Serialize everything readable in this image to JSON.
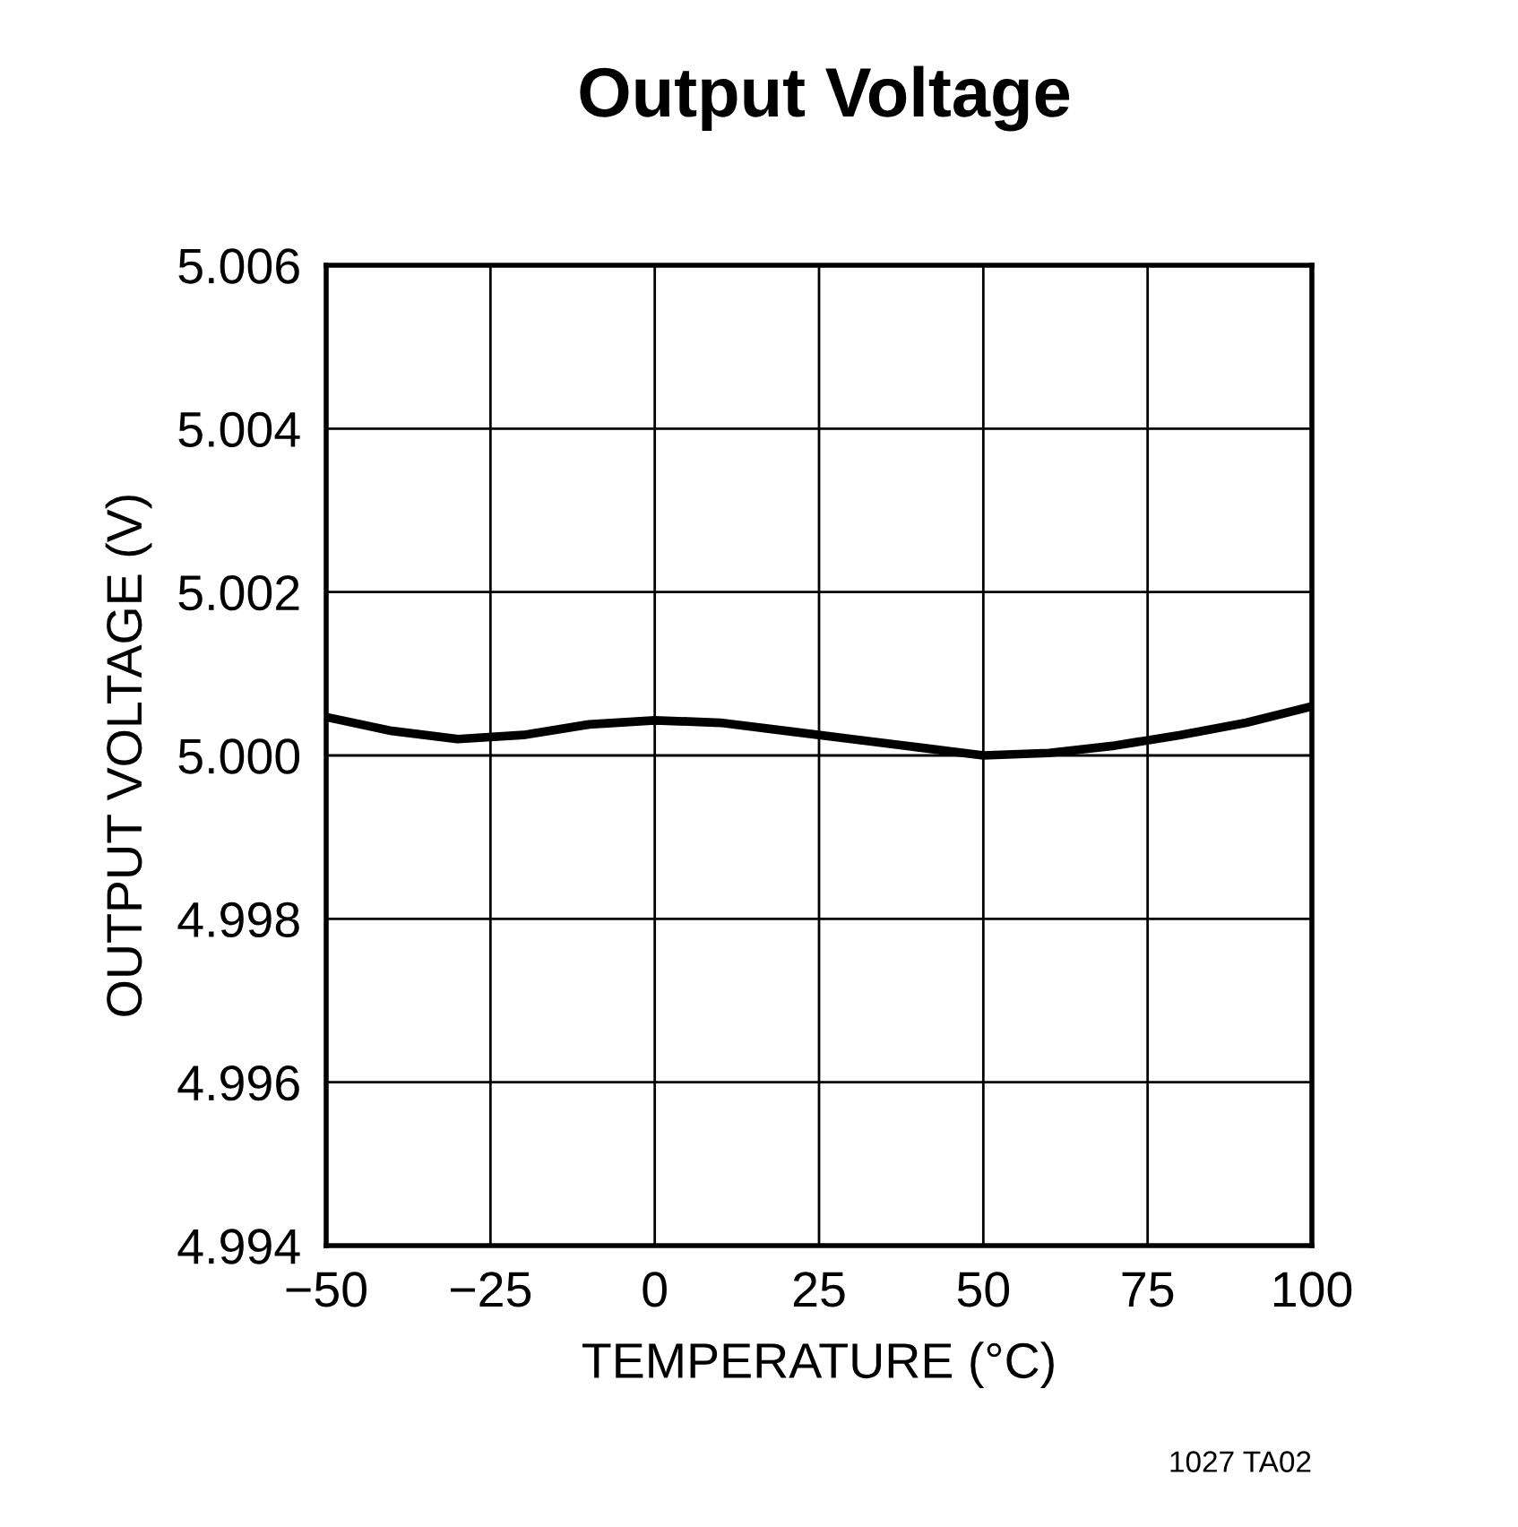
{
  "chart_data": {
    "type": "line",
    "title": "Output Voltage",
    "xlabel": "TEMPERATURE (°C)",
    "ylabel": "OUTPUT VOLTAGE (V)",
    "annotations": [
      "1027 TA02"
    ],
    "x": [
      -50,
      -40,
      -30,
      -20,
      -10,
      0,
      10,
      20,
      30,
      40,
      50,
      60,
      70,
      80,
      90,
      100
    ],
    "series": [
      {
        "color": "#000000",
        "values": [
          5.00047,
          5.0003,
          5.0002,
          5.00025,
          5.00038,
          5.00043,
          5.0004,
          5.0003,
          5.0002,
          5.0001,
          5.0,
          5.00003,
          5.00012,
          5.00025,
          5.0004,
          5.0006
        ]
      }
    ],
    "xlim": [
      -50,
      100
    ],
    "ylim": [
      4.994,
      5.006
    ],
    "xticks": [
      {
        "value": -50,
        "label": "−50"
      },
      {
        "value": -25,
        "label": "−25"
      },
      0,
      25,
      50,
      75,
      100
    ],
    "yticks": [
      {
        "value": 4.994,
        "label": "4.994"
      },
      {
        "value": 4.996,
        "label": "4.996"
      },
      {
        "value": 4.998,
        "label": "4.998"
      },
      {
        "value": 5.0,
        "label": "5.000"
      },
      {
        "value": 5.002,
        "label": "5.002"
      },
      {
        "value": 5.004,
        "label": "5.004"
      },
      {
        "value": 5.006,
        "label": "5.006"
      }
    ],
    "grid": true,
    "legend": false,
    "marker": "none",
    "line_style": "solid"
  }
}
